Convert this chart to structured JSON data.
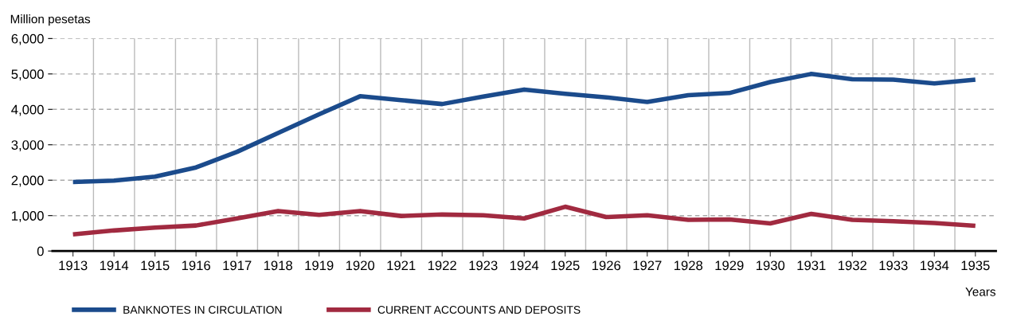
{
  "chart_data": {
    "type": "line",
    "ylabel": "Million pesetas",
    "xlabel": "Years",
    "categories": [
      "1913",
      "1914",
      "1915",
      "1916",
      "1917",
      "1918",
      "1919",
      "1920",
      "1921",
      "1922",
      "1923",
      "1924",
      "1925",
      "1926",
      "1927",
      "1928",
      "1929",
      "1930",
      "1931",
      "1932",
      "1933",
      "1934",
      "1935"
    ],
    "series": [
      {
        "name": "BANKNOTES IN CIRCULATION",
        "color": "#1b4b8c",
        "values": [
          1950,
          1990,
          2100,
          2360,
          2800,
          3330,
          3860,
          4370,
          4260,
          4150,
          4360,
          4560,
          4440,
          4340,
          4210,
          4400,
          4460,
          4770,
          5000,
          4850,
          4840,
          4730,
          4840
        ]
      },
      {
        "name": "CURRENT ACCOUNTS AND DEPOSITS",
        "color": "#a12a40",
        "values": [
          470,
          580,
          660,
          720,
          920,
          1130,
          1020,
          1130,
          990,
          1030,
          1010,
          920,
          1250,
          960,
          1010,
          880,
          890,
          780,
          1050,
          880,
          840,
          790,
          710
        ]
      }
    ],
    "ylim": [
      0,
      6000
    ],
    "yticks": [
      {
        "value": 0,
        "label": "0"
      },
      {
        "value": 1000,
        "label": "1,000"
      },
      {
        "value": 2000,
        "label": "2,000"
      },
      {
        "value": 3000,
        "label": "3,000"
      },
      {
        "value": 4000,
        "label": "4,000"
      },
      {
        "value": 5000,
        "label": "5,000"
      },
      {
        "value": 6000,
        "label": "6,000"
      }
    ],
    "grid": true,
    "legend": "bottom",
    "marker": "none",
    "line_style": "solid"
  }
}
